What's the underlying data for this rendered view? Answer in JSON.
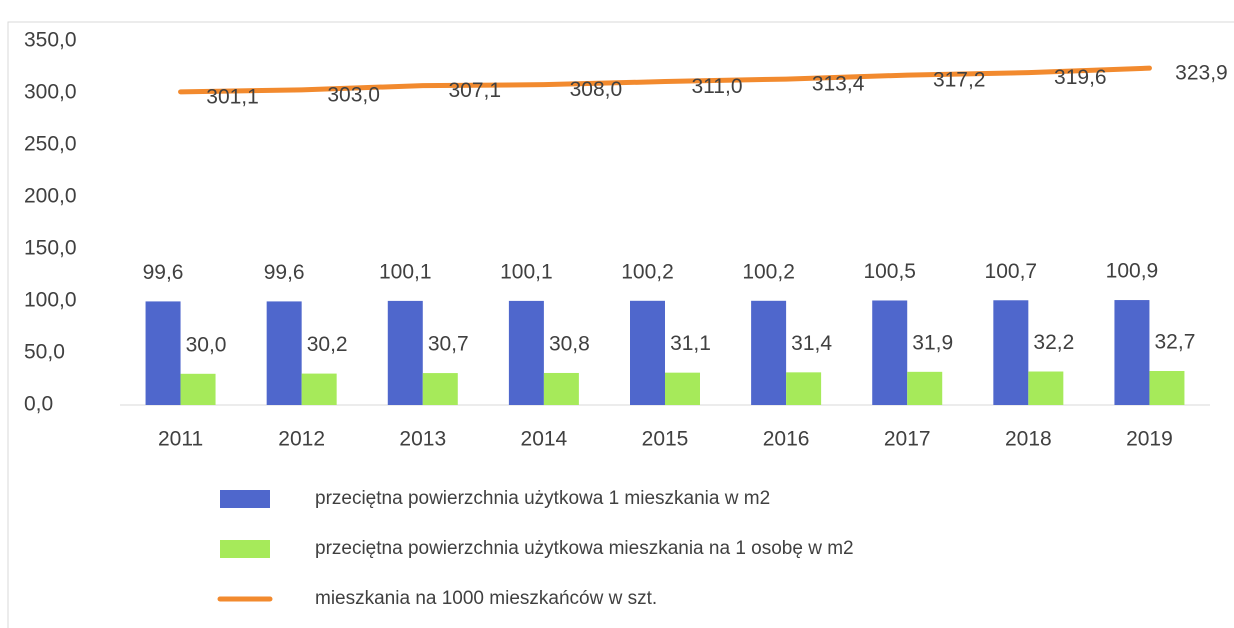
{
  "chart_data": {
    "type": "bar",
    "categories": [
      "2011",
      "2012",
      "2013",
      "2014",
      "2015",
      "2016",
      "2017",
      "2018",
      "2019"
    ],
    "series": [
      {
        "name": "przeciętna powierzchnia użytkowa 1 mieszkania w m2",
        "type": "bar",
        "color": "#4f67cc",
        "values": [
          99.6,
          99.6,
          100.1,
          100.1,
          100.2,
          100.2,
          100.5,
          100.7,
          100.9
        ],
        "value_labels": [
          "99,6",
          "99,6",
          "100,1",
          "100,1",
          "100,2",
          "100,2",
          "100,5",
          "100,7",
          "100,9"
        ]
      },
      {
        "name": "przeciętna powierzchnia użytkowa mieszkania na 1 osobę w m2",
        "type": "bar",
        "color": "#a6ea5a",
        "values": [
          30.0,
          30.2,
          30.7,
          30.8,
          31.1,
          31.4,
          31.9,
          32.2,
          32.7
        ],
        "value_labels": [
          "30,0",
          "30,2",
          "30,7",
          "30,8",
          "31,1",
          "31,4",
          "31,9",
          "32,2",
          "32,7"
        ]
      },
      {
        "name": "mieszkania na 1000 mieszkańców w szt.",
        "type": "line",
        "color": "#f28a2e",
        "values": [
          301.1,
          303.0,
          307.1,
          308.0,
          311.0,
          313.4,
          317.2,
          319.6,
          323.9
        ],
        "value_labels": [
          "301,1",
          "303,0",
          "307,1",
          "308,0",
          "311,0",
          "313,4",
          "317,2",
          "319,6",
          "323,9"
        ]
      }
    ],
    "ylim": [
      0,
      350
    ],
    "yticks": [
      {
        "value": 0,
        "label": "0,0"
      },
      {
        "value": 50,
        "label": "50,0"
      },
      {
        "value": 100,
        "label": "100,0"
      },
      {
        "value": 150,
        "label": "150,0"
      },
      {
        "value": 200,
        "label": "200,0"
      },
      {
        "value": 250,
        "label": "250,0"
      },
      {
        "value": 300,
        "label": "300,0"
      },
      {
        "value": 350,
        "label": "350,0"
      }
    ],
    "grid": false,
    "legend": "bottom"
  }
}
